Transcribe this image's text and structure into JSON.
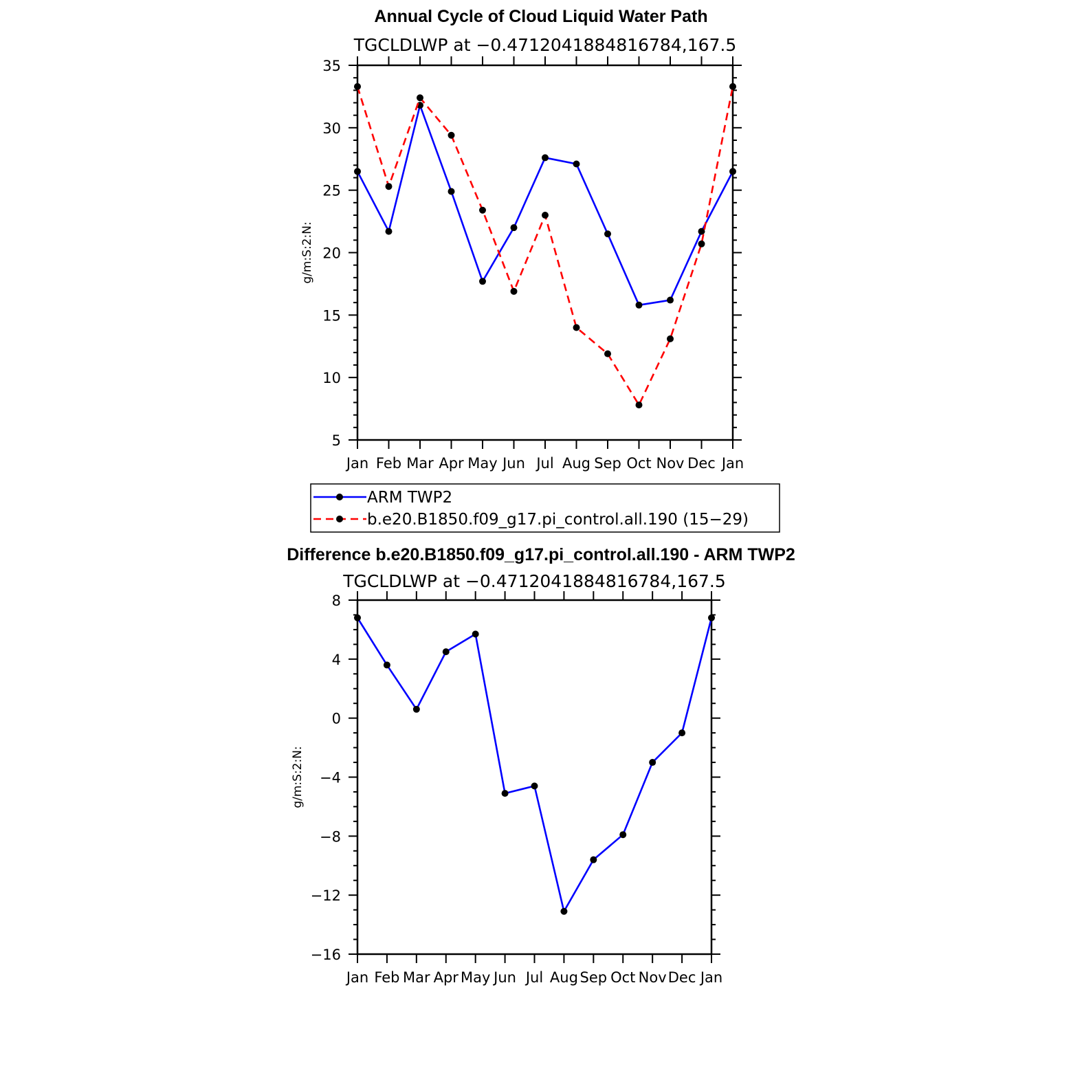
{
  "chart_data": [
    {
      "type": "line",
      "title": "Annual Cycle of Cloud Liquid Water Path",
      "subtitle": "TGCLDLWP at −0.4712041884816784,167.5",
      "ylabel": "g/m:S:2:N:",
      "ylim": [
        5,
        35
      ],
      "yticks": [
        "5",
        "10",
        "15",
        "20",
        "25",
        "30",
        "35"
      ],
      "categories": [
        "Jan",
        "Feb",
        "Mar",
        "Apr",
        "May",
        "Jun",
        "Jul",
        "Aug",
        "Sep",
        "Oct",
        "Nov",
        "Dec",
        "Jan"
      ],
      "series": [
        {
          "name": "ARM TWP2",
          "color": "#0000ff",
          "dash": "solid",
          "values": [
            26.5,
            21.7,
            31.8,
            24.9,
            17.7,
            22.0,
            27.6,
            27.1,
            21.5,
            15.8,
            16.2,
            21.7,
            26.5
          ]
        },
        {
          "name": "b.e20.B1850.f09_g17.pi_control.all.190 (15−29)",
          "color": "#ff0000",
          "dash": "dashed",
          "values": [
            33.3,
            25.3,
            32.4,
            29.4,
            23.4,
            16.9,
            23.0,
            14.0,
            11.9,
            7.8,
            13.1,
            20.7,
            33.3
          ]
        }
      ],
      "legend_position": "below"
    },
    {
      "type": "line",
      "title": "Difference b.e20.B1850.f09_g17.pi_control.all.190 - ARM TWP2",
      "subtitle": "TGCLDLWP at −0.4712041884816784,167.5",
      "ylabel": "g/m:S:2:N:",
      "ylim": [
        -16,
        8
      ],
      "yticks": [
        "8",
        "4",
        "0",
        "−4",
        "−8",
        "−12",
        "−16"
      ],
      "categories": [
        "Jan",
        "Feb",
        "Mar",
        "Apr",
        "May",
        "Jun",
        "Jul",
        "Aug",
        "Sep",
        "Oct",
        "Nov",
        "Dec",
        "Jan"
      ],
      "series": [
        {
          "color": "#0000ff",
          "dash": "solid",
          "values": [
            6.8,
            3.6,
            0.6,
            4.5,
            5.7,
            -5.1,
            -4.6,
            -13.1,
            -9.6,
            -7.9,
            -3.0,
            -1.0,
            6.8
          ]
        }
      ]
    }
  ]
}
